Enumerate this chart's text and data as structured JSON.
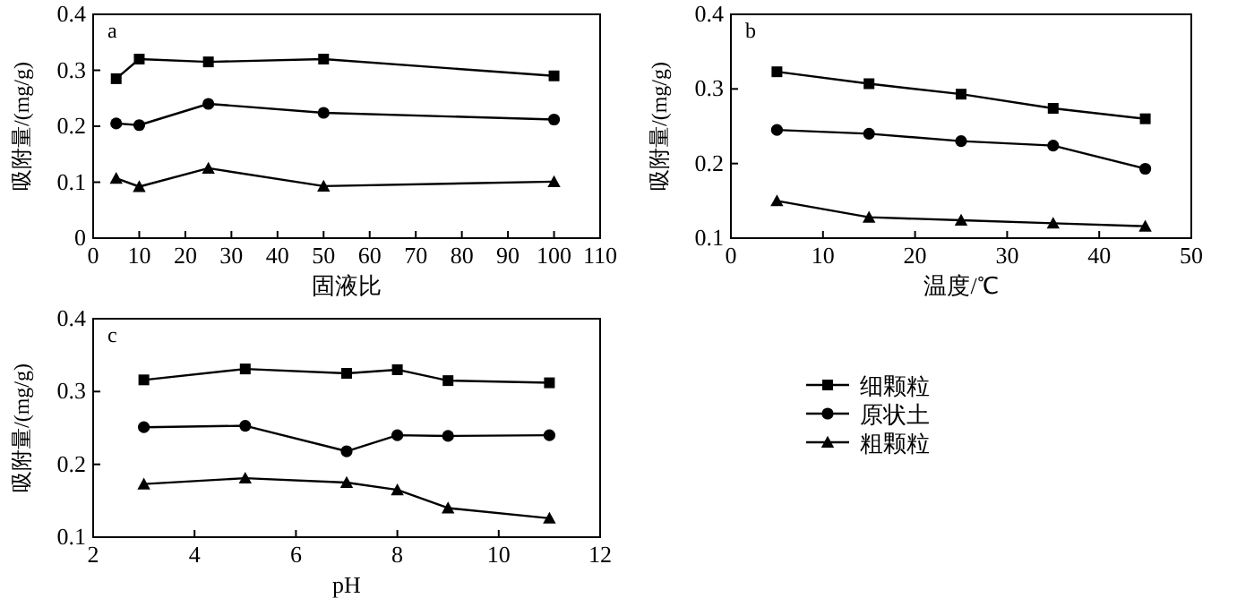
{
  "chart_data": [
    {
      "type": "line",
      "annotations": [
        "a"
      ],
      "xlabel": "固液比",
      "ylabel": "吸附量/(mg/g)",
      "x": [
        5,
        10,
        25,
        50,
        100
      ],
      "xlim": [
        0,
        110
      ],
      "xticks": [
        0,
        10,
        20,
        30,
        40,
        50,
        60,
        70,
        80,
        90,
        100,
        110
      ],
      "ylim": [
        0,
        0.4
      ],
      "yticks": [
        0,
        0.1,
        0.2,
        0.3,
        0.4
      ],
      "grid": false,
      "legend": false,
      "series": [
        {
          "color": "#000000",
          "marker": "square",
          "values": [
            0.285,
            0.32,
            0.315,
            0.32,
            0.29
          ]
        },
        {
          "color": "#000000",
          "marker": "circle",
          "values": [
            0.205,
            0.202,
            0.24,
            0.224,
            0.212
          ]
        },
        {
          "color": "#000000",
          "marker": "triangle",
          "values": [
            0.107,
            0.092,
            0.125,
            0.093,
            0.101
          ]
        }
      ]
    },
    {
      "type": "line",
      "annotations": [
        "b"
      ],
      "xlabel": "温度/℃",
      "ylabel": "吸附量/(mg/g)",
      "x": [
        5,
        15,
        25,
        35,
        45
      ],
      "xlim": [
        0,
        50
      ],
      "xticks": [
        0,
        10,
        20,
        30,
        40,
        50
      ],
      "ylim": [
        0.1,
        0.4
      ],
      "yticks": [
        0.1,
        0.2,
        0.3,
        0.4
      ],
      "grid": false,
      "legend": false,
      "series": [
        {
          "color": "#000000",
          "marker": "square",
          "values": [
            0.323,
            0.307,
            0.293,
            0.274,
            0.26
          ]
        },
        {
          "color": "#000000",
          "marker": "circle",
          "values": [
            0.245,
            0.24,
            0.23,
            0.224,
            0.193
          ]
        },
        {
          "color": "#000000",
          "marker": "triangle",
          "values": [
            0.15,
            0.128,
            0.124,
            0.12,
            0.116
          ]
        }
      ]
    },
    {
      "type": "line",
      "annotations": [
        "c"
      ],
      "xlabel": "pH",
      "ylabel": "吸附量/(mg/g)",
      "x": [
        3,
        5,
        7,
        8,
        9,
        11
      ],
      "xlim": [
        2,
        12
      ],
      "xticks": [
        2,
        4,
        6,
        8,
        10,
        12
      ],
      "ylim": [
        0.1,
        0.4
      ],
      "yticks": [
        0.1,
        0.2,
        0.3,
        0.4
      ],
      "grid": false,
      "legend": "right",
      "series": [
        {
          "name": "细颗粒",
          "color": "#000000",
          "marker": "square",
          "values": [
            0.316,
            0.331,
            0.325,
            0.33,
            0.315,
            0.312
          ]
        },
        {
          "name": "原状土",
          "color": "#000000",
          "marker": "circle",
          "values": [
            0.251,
            0.253,
            0.218,
            0.24,
            0.239,
            0.24
          ]
        },
        {
          "name": "粗颗粒",
          "color": "#000000",
          "marker": "triangle",
          "values": [
            0.173,
            0.181,
            0.175,
            0.165,
            0.14,
            0.126
          ]
        }
      ]
    }
  ]
}
